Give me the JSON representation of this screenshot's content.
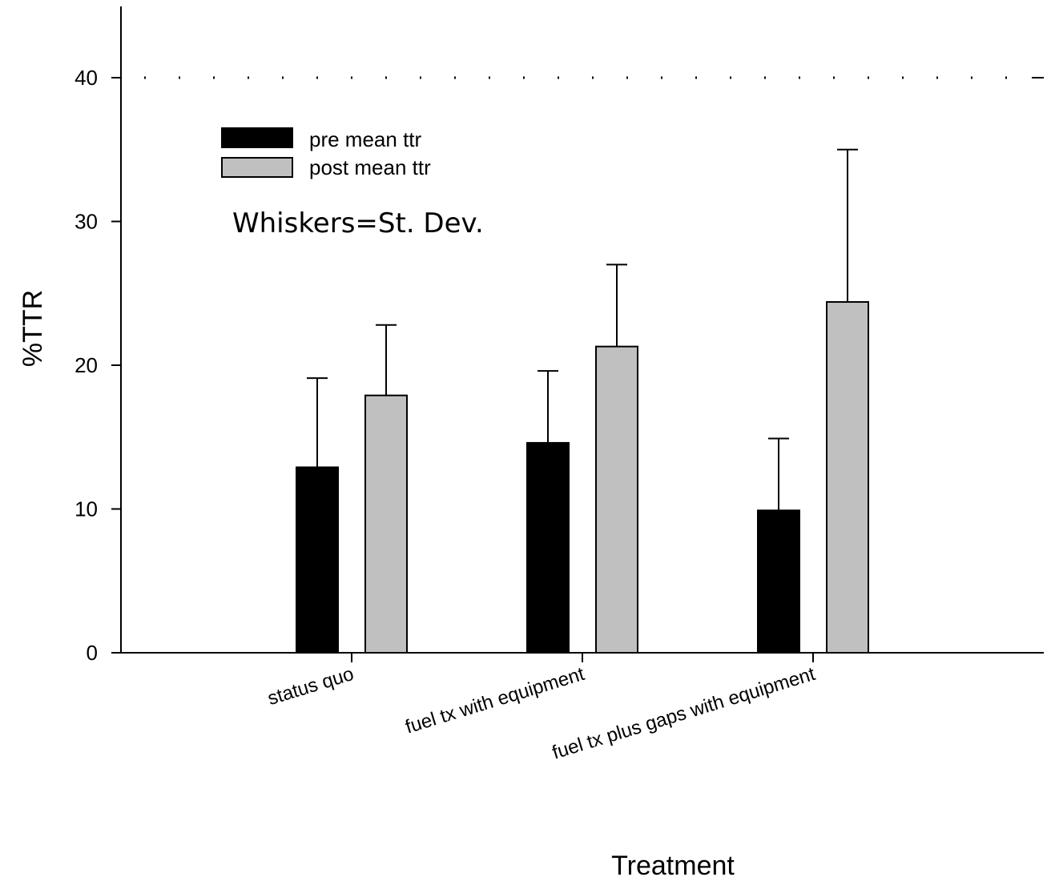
{
  "chart_data": {
    "type": "bar",
    "xlabel": "Treatment",
    "ylabel": "%TTR",
    "ylim": [
      0,
      45
    ],
    "yticks": [
      0,
      10,
      20,
      30,
      40
    ],
    "categories": [
      "status quo",
      "fuel tx with equipment",
      "fuel tx plus gaps with equipment"
    ],
    "series": [
      {
        "name": "pre mean ttr",
        "color": "#000000",
        "values": [
          12.9,
          14.6,
          9.9
        ],
        "error": [
          6.2,
          5.0,
          5.0
        ]
      },
      {
        "name": "post mean ttr",
        "color": "#c0c0c0",
        "values": [
          17.9,
          21.3,
          24.4
        ],
        "error": [
          4.9,
          5.7,
          10.6
        ]
      }
    ],
    "reference_line": {
      "y": 40,
      "style": "dotted"
    },
    "annotation": "Whiskers=St. Dev.",
    "legend_position": "top-left",
    "grid": false
  }
}
